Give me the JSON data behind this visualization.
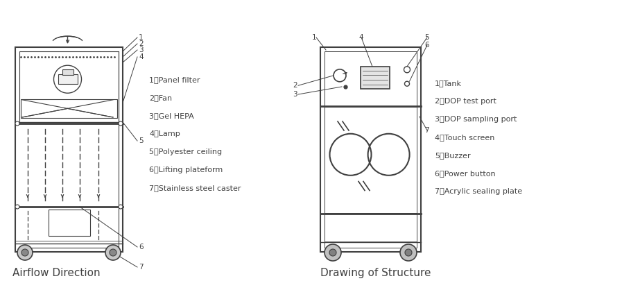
{
  "bg_color": "#ffffff",
  "line_color": "#404040",
  "text_color": "#404040",
  "title1": "Airflow Direction",
  "title2": "Drawing of Structure",
  "left_labels": [
    "1、Panel filter",
    "2、Fan",
    "3、Gel HEPA",
    "4、Lamp",
    "5、Polyester ceiling",
    "6、Lifting plateform",
    "7、Stainless steel caster"
  ],
  "right_labels": [
    "1、Tank",
    "2、DOP test port",
    "3、DOP sampling port",
    "4、Touch screen",
    "5、Buzzer",
    "6、Power button",
    "7、Acrylic sealing plate"
  ],
  "label_fontsize": 8.0,
  "number_fontsize": 7.5,
  "title_fontsize": 11.0
}
